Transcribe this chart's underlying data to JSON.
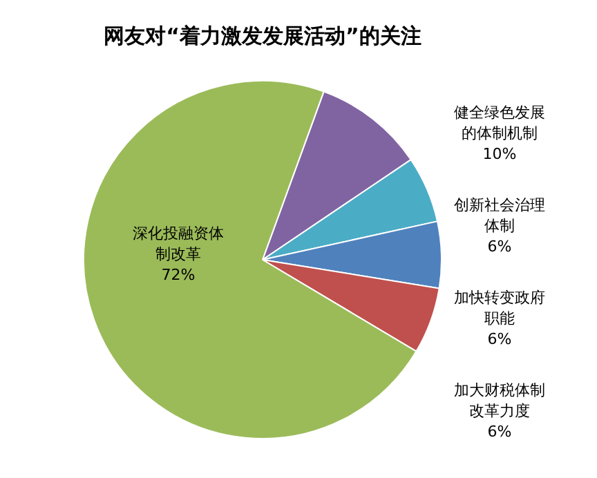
{
  "chart_data": {
    "type": "pie",
    "title": "网友对“着力激发发展活动”的关注",
    "categories": [
      "健全绿色发展的体制机制",
      "创新社会治理体制",
      "加快转变政府职能",
      "加大财税体制改革力度",
      "深化投融资体制改革"
    ],
    "values": [
      10,
      6,
      6,
      6,
      72
    ],
    "colors": [
      "#8064a2",
      "#4bacc6",
      "#4f81bd",
      "#c0504d",
      "#9bbb59"
    ],
    "value_labels": [
      "10%",
      "6%",
      "6%",
      "6%",
      "72%"
    ],
    "legend": false
  }
}
